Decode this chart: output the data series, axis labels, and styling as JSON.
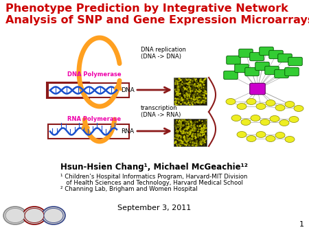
{
  "title_line1": "Phenotype Prediction by Integrative Network",
  "title_line2": "Analysis of SNP and Gene Expression Microarrays",
  "title_color": "#cc0000",
  "author_line": "Hsun-Hsien Chang¹, Michael McGeachie¹²",
  "affil1": "¹ Children’s Hospital Informatics Program, Harvard-MIT Division",
  "affil2": "   of Health Sciences and Technology, Harvard Medical School",
  "affil3": "² Channing Lab, Brigham and Women Hospital",
  "date": "September 3, 2011",
  "slide_number": "1",
  "white": "#ffffff",
  "black": "#000000",
  "dark_red": "#8b1a1a",
  "magenta": "#cc00cc",
  "orange": "#ffa020",
  "blue": "#1a50cc",
  "green": "#33cc33",
  "yellow": "#eeee22"
}
